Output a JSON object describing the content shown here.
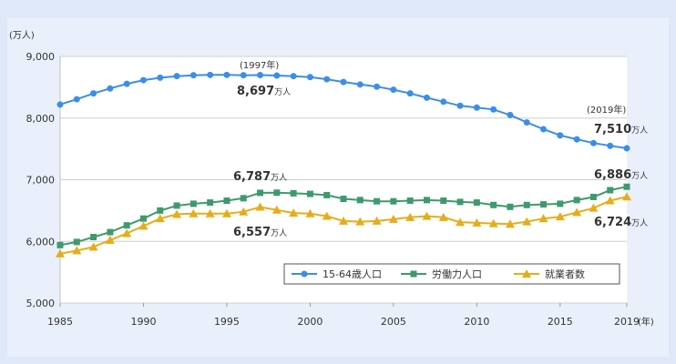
{
  "chart_data": {
    "type": "line",
    "title": "",
    "ylabel": "(万人)",
    "xlabel": "(年)",
    "ylim": [
      5000,
      9000
    ],
    "xlim": [
      1985,
      2019
    ],
    "yticks": [
      "5,000",
      "6,000",
      "7,000",
      "8,000",
      "9,000"
    ],
    "ytick_values": [
      5000,
      6000,
      7000,
      8000,
      9000
    ],
    "xticks": [
      "1985",
      "1990",
      "1995",
      "2000",
      "2005",
      "2010",
      "2015",
      "2019"
    ],
    "xtick_values": [
      1985,
      1990,
      1995,
      2000,
      2005,
      2010,
      2015,
      2019
    ],
    "grid": true,
    "legend": "bottom-right",
    "x": [
      1985,
      1986,
      1987,
      1988,
      1989,
      1990,
      1991,
      1992,
      1993,
      1994,
      1995,
      1996,
      1997,
      1998,
      1999,
      2000,
      2001,
      2002,
      2003,
      2004,
      2005,
      2006,
      2007,
      2008,
      2009,
      2010,
      2011,
      2012,
      2013,
      2014,
      2015,
      2016,
      2017,
      2018,
      2019
    ],
    "series": [
      {
        "name": "15-64歳人口",
        "color": "#3b8ee8",
        "marker": "circle",
        "values": [
          8220,
          8305,
          8400,
          8480,
          8555,
          8615,
          8655,
          8680,
          8695,
          8700,
          8700,
          8695,
          8697,
          8690,
          8680,
          8665,
          8630,
          8585,
          8545,
          8510,
          8460,
          8400,
          8330,
          8265,
          8200,
          8170,
          8140,
          8050,
          7930,
          7820,
          7720,
          7655,
          7595,
          7550,
          7510
        ]
      },
      {
        "name": "労働力人口",
        "color": "#3e9a6d",
        "marker": "square",
        "values": [
          5940,
          5990,
          6070,
          6150,
          6260,
          6370,
          6500,
          6580,
          6610,
          6630,
          6660,
          6700,
          6787,
          6790,
          6780,
          6770,
          6750,
          6690,
          6670,
          6650,
          6650,
          6660,
          6670,
          6660,
          6640,
          6630,
          6590,
          6560,
          6590,
          6600,
          6610,
          6670,
          6720,
          6830,
          6886
        ]
      },
      {
        "name": "就業者数",
        "color": "#e6ad1a",
        "marker": "triangle",
        "values": [
          5800,
          5850,
          5910,
          6020,
          6130,
          6250,
          6370,
          6440,
          6450,
          6450,
          6450,
          6480,
          6557,
          6510,
          6460,
          6450,
          6410,
          6330,
          6320,
          6330,
          6360,
          6390,
          6410,
          6390,
          6310,
          6300,
          6290,
          6280,
          6320,
          6370,
          6400,
          6470,
          6540,
          6660,
          6724
        ]
      }
    ],
    "annotations": {
      "peak_year": "(1997年)",
      "pop_1997": "8,697",
      "labor_1997": "6,787",
      "emp_1997": "6,557",
      "last_year": "(2019年)",
      "pop_2019": "7,510",
      "labor_2019": "6,886",
      "emp_2019": "6,724",
      "unit": "万人"
    }
  }
}
